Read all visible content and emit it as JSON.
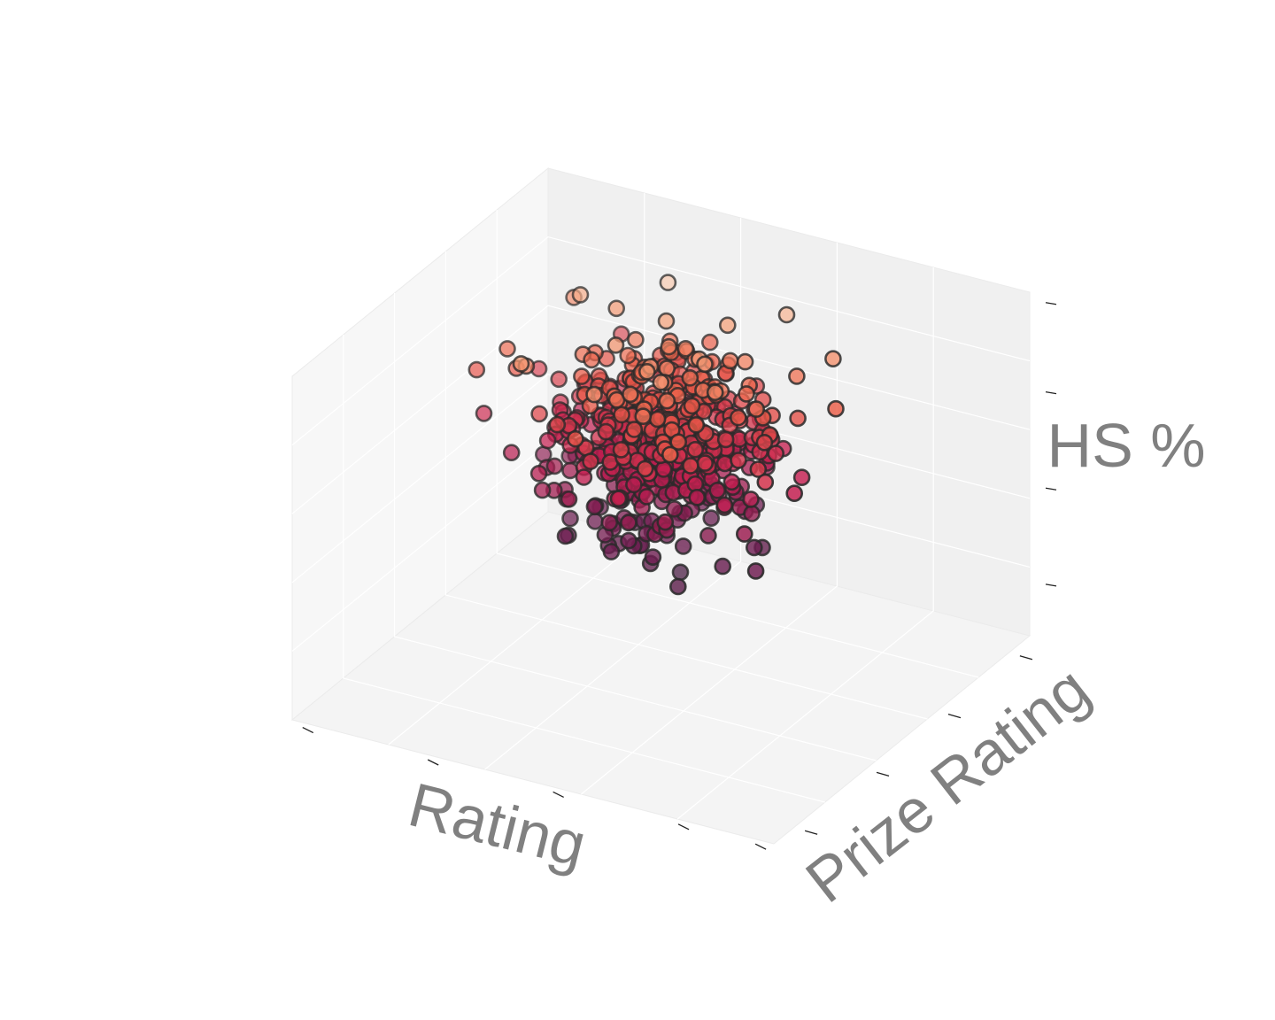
{
  "chart_data": {
    "type": "scatter",
    "projection": "3d",
    "xlabel": "Rating",
    "ylabel": "Prize Rating",
    "zlabel": "HS %",
    "tick_labels_visible": false,
    "grid": true,
    "colormap": "rocket (dark purple → crimson → orange → cream), mapped to HS %",
    "marker_edge_color": "#2a2a2a",
    "pane_color": "#f2f2f2",
    "grid_color": "#ffffff",
    "axis_label_color": "#808080",
    "value_ranges": {
      "x": [
        0,
        1
      ],
      "y": [
        0,
        1
      ],
      "z": [
        0,
        1
      ]
    },
    "points": [
      [
        0.05,
        0.42,
        0.68
      ],
      [
        0.1,
        0.48,
        0.74
      ],
      [
        0.08,
        0.4,
        0.54
      ],
      [
        0.14,
        0.45,
        0.7
      ],
      [
        0.12,
        0.6,
        0.6
      ],
      [
        0.18,
        0.35,
        0.46
      ],
      [
        0.2,
        0.55,
        0.62
      ],
      [
        0.16,
        0.7,
        0.82
      ],
      [
        0.22,
        0.62,
        0.9
      ],
      [
        0.25,
        0.4,
        0.5
      ],
      [
        0.28,
        0.52,
        0.76
      ],
      [
        0.3,
        0.65,
        0.86
      ],
      [
        0.32,
        0.3,
        0.4
      ],
      [
        0.35,
        0.48,
        0.58
      ],
      [
        0.38,
        0.58,
        0.72
      ],
      [
        0.4,
        0.72,
        0.95
      ],
      [
        0.42,
        0.4,
        0.52
      ],
      [
        0.45,
        0.55,
        0.64
      ],
      [
        0.48,
        0.35,
        0.44
      ],
      [
        0.5,
        0.62,
        0.8
      ],
      [
        0.52,
        0.5,
        0.66
      ],
      [
        0.55,
        0.42,
        0.48
      ],
      [
        0.58,
        0.68,
        0.88
      ],
      [
        0.6,
        0.55,
        0.7
      ],
      [
        0.62,
        0.3,
        0.36
      ],
      [
        0.65,
        0.48,
        0.56
      ],
      [
        0.68,
        0.6,
        0.74
      ],
      [
        0.7,
        0.75,
        0.92
      ],
      [
        0.72,
        0.4,
        0.42
      ],
      [
        0.75,
        0.52,
        0.62
      ],
      [
        0.78,
        0.65,
        0.78
      ],
      [
        0.8,
        0.35,
        0.38
      ],
      [
        0.82,
        0.58,
        0.68
      ],
      [
        0.85,
        0.7,
        0.84
      ],
      [
        0.88,
        0.45,
        0.5
      ],
      [
        0.9,
        0.62,
        0.72
      ],
      [
        0.3,
        0.4,
        0.3
      ],
      [
        0.35,
        0.3,
        0.24
      ],
      [
        0.4,
        0.48,
        0.28
      ],
      [
        0.45,
        0.38,
        0.2
      ],
      [
        0.5,
        0.45,
        0.26
      ],
      [
        0.55,
        0.35,
        0.18
      ],
      [
        0.6,
        0.42,
        0.22
      ],
      [
        0.65,
        0.3,
        0.16
      ],
      [
        0.42,
        0.55,
        0.34
      ],
      [
        0.48,
        0.62,
        0.38
      ],
      [
        0.52,
        0.58,
        0.32
      ],
      [
        0.58,
        0.5,
        0.3
      ],
      [
        0.38,
        0.6,
        0.42
      ],
      [
        0.44,
        0.52,
        0.46
      ],
      [
        0.5,
        0.4,
        0.4
      ],
      [
        0.56,
        0.64,
        0.44
      ],
      [
        0.62,
        0.56,
        0.48
      ],
      [
        0.46,
        0.46,
        0.54
      ],
      [
        0.54,
        0.52,
        0.52
      ],
      [
        0.4,
        0.42,
        0.6
      ],
      [
        0.6,
        0.46,
        0.58
      ],
      [
        0.34,
        0.5,
        0.64
      ],
      [
        0.66,
        0.54,
        0.62
      ],
      [
        0.48,
        0.7,
        0.66
      ],
      [
        0.52,
        0.34,
        0.56
      ],
      [
        0.44,
        0.66,
        0.74
      ],
      [
        0.56,
        0.72,
        0.7
      ],
      [
        0.36,
        0.56,
        0.5
      ],
      [
        0.64,
        0.38,
        0.52
      ],
      [
        0.7,
        0.48,
        0.44
      ],
      [
        0.26,
        0.46,
        0.48
      ],
      [
        0.74,
        0.6,
        0.56
      ],
      [
        0.22,
        0.52,
        0.56
      ],
      [
        0.78,
        0.42,
        0.46
      ]
    ]
  }
}
